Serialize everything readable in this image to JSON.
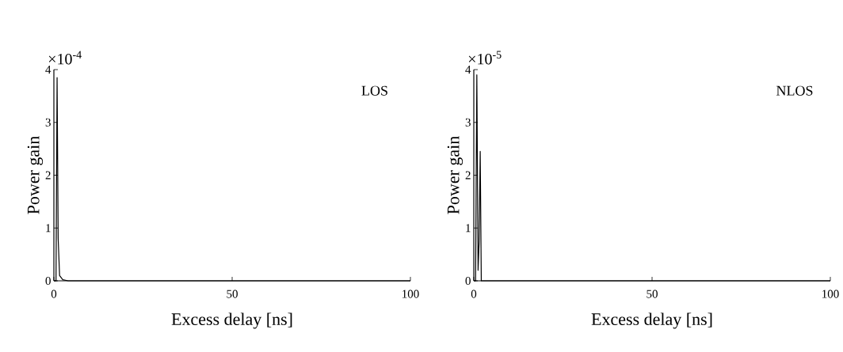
{
  "chart_data": [
    {
      "type": "line",
      "xlabel": "Excess delay [ns]",
      "ylabel": "Power gain",
      "annotations": [
        "×10$^{-4}$",
        "LOS"
      ],
      "x": [
        0,
        0.6,
        0.9,
        1.2,
        1.6,
        2.5,
        4,
        100
      ],
      "series": [
        {
          "color": "#000000",
          "values": [
            0,
            0,
            3.85,
            0.8,
            0.1,
            0.02,
            0,
            0
          ]
        }
      ],
      "xlim": [
        0,
        100
      ],
      "ylim": [
        0,
        4
      ],
      "xticks": [
        0,
        50,
        100
      ],
      "yticks": [
        0,
        1,
        2,
        3,
        4
      ]
    },
    {
      "type": "line",
      "xlabel": "Excess delay [ns]",
      "ylabel": "Power gain",
      "annotations": [
        "×10$^{-5}$",
        "NLOS"
      ],
      "x": [
        0,
        0.5,
        0.85,
        1.2,
        1.5,
        1.8,
        2.1,
        100
      ],
      "series": [
        {
          "color": "#000000",
          "values": [
            0,
            0,
            3.9,
            0.2,
            0.75,
            2.45,
            0,
            0
          ]
        }
      ],
      "xlim": [
        0,
        100
      ],
      "ylim": [
        0,
        4
      ],
      "xticks": [
        0,
        50,
        100
      ],
      "yticks": [
        0,
        1,
        2,
        3,
        4
      ]
    }
  ]
}
